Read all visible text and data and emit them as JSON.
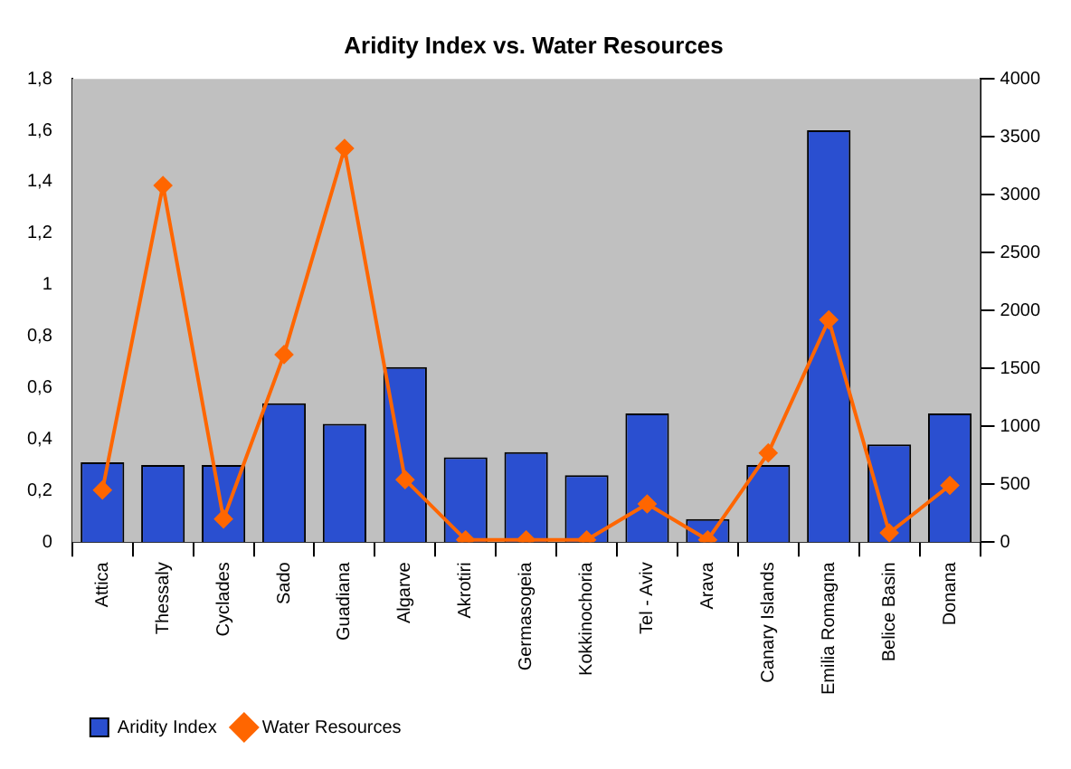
{
  "chart_data": {
    "type": "bar",
    "title": "Aridity Index vs. Water Resources",
    "categories": [
      "Attica",
      "Thessaly",
      "Cyclades",
      "Sado",
      "Guadiana",
      "Algarve",
      "Akrotiri",
      "Germasogeia",
      "Kokkinochoria",
      "Tel - Aviv",
      "Arava",
      "Canary Islands",
      "Emilia Romagna",
      "Belice Basin",
      "Donana"
    ],
    "series": [
      {
        "name": "Aridity Index",
        "color": "#2a4fd0",
        "values": [
          0.31,
          0.3,
          0.3,
          0.54,
          0.46,
          0.68,
          0.33,
          0.35,
          0.26,
          0.5,
          0.09,
          0.3,
          1.6,
          0.38,
          0.5
        ]
      },
      {
        "name": "Water Resources",
        "type": "line",
        "axis": "y2",
        "color": "#ff6600",
        "marker": "diamond",
        "values": [
          450,
          3080,
          200,
          1620,
          3400,
          540,
          20,
          20,
          20,
          330,
          20,
          770,
          1920,
          80,
          490
        ]
      }
    ],
    "ylim": [
      0,
      1.8
    ],
    "yticks": [
      0,
      {
        "value": 0.2,
        "label": "0,2"
      },
      {
        "value": 0.4,
        "label": "0,4"
      },
      {
        "value": 0.6,
        "label": "0,6"
      },
      {
        "value": 0.8,
        "label": "0,8"
      },
      1,
      {
        "value": 1.2,
        "label": "1,2"
      },
      {
        "value": 1.4,
        "label": "1,4"
      },
      {
        "value": 1.6,
        "label": "1,6"
      },
      {
        "value": 1.8,
        "label": "1,8"
      }
    ],
    "y2lim": [
      0,
      4000
    ],
    "y2ticks": [
      0,
      500,
      1000,
      1500,
      2000,
      2500,
      3000,
      3500,
      4000
    ],
    "grid": false,
    "legend": "bottom left"
  }
}
